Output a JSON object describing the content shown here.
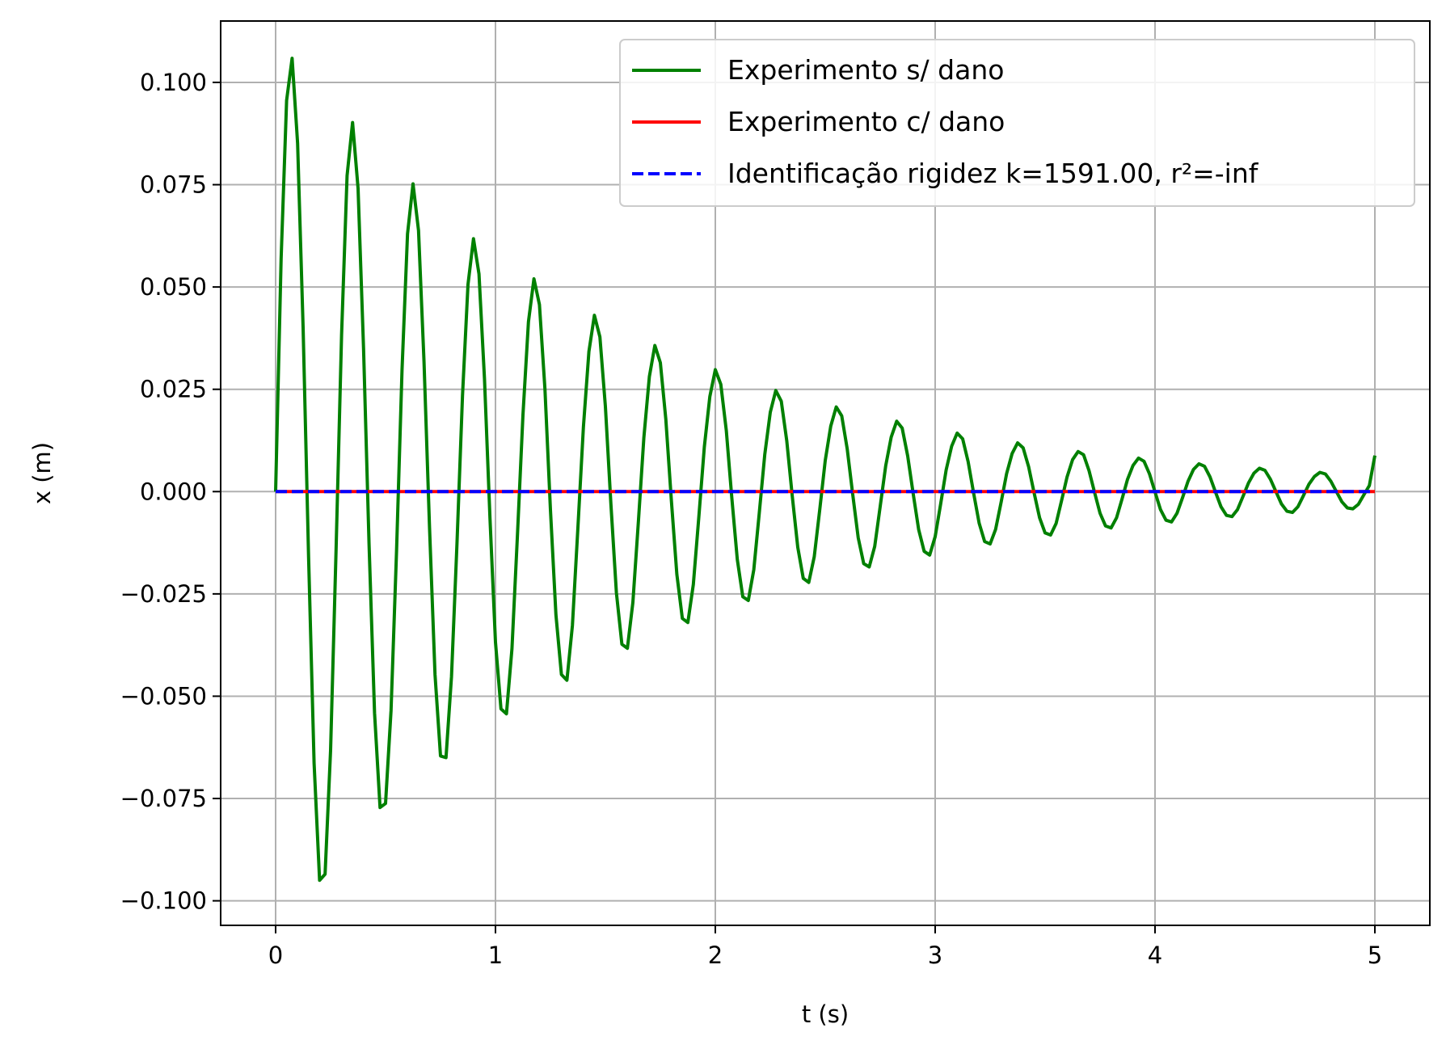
{
  "chart_data": {
    "type": "line",
    "title": "",
    "xlabel": "t (s)",
    "ylabel": "x (m)",
    "xlim": [
      -0.25,
      5.25
    ],
    "ylim": [
      -0.106,
      0.115
    ],
    "xticks": [
      0,
      1,
      2,
      3,
      4,
      5
    ],
    "xtick_labels": [
      "0",
      "1",
      "2",
      "3",
      "4",
      "5"
    ],
    "yticks": [
      -0.1,
      -0.075,
      -0.05,
      -0.025,
      0.0,
      0.025,
      0.05,
      0.075,
      0.1
    ],
    "ytick_labels": [
      "−0.100",
      "−0.075",
      "−0.050",
      "−0.025",
      "0.000",
      "0.025",
      "0.050",
      "0.075",
      "0.100"
    ],
    "grid": true,
    "legend_position": "top-right",
    "series": [
      {
        "name": "Experimento s/ dano",
        "color": "#008000",
        "style": "solid",
        "x": [
          0.0,
          0.025,
          0.05,
          0.075,
          0.1,
          0.125,
          0.15,
          0.175,
          0.2,
          0.225,
          0.25,
          0.275,
          0.3,
          0.325,
          0.35,
          0.375,
          0.4,
          0.425,
          0.45,
          0.475,
          0.5,
          0.525,
          0.55,
          0.575,
          0.6,
          0.625,
          0.65,
          0.675,
          0.7,
          0.725,
          0.75,
          0.775,
          0.8,
          0.825,
          0.85,
          0.875,
          0.9,
          0.925,
          0.95,
          0.975,
          1.0,
          1.025,
          1.05,
          1.075,
          1.1,
          1.125,
          1.15,
          1.175,
          1.2,
          1.225,
          1.25,
          1.275,
          1.3,
          1.325,
          1.35,
          1.375,
          1.4,
          1.425,
          1.45,
          1.475,
          1.5,
          1.525,
          1.55,
          1.575,
          1.6,
          1.625,
          1.65,
          1.675,
          1.7,
          1.725,
          1.75,
          1.775,
          1.8,
          1.825,
          1.85,
          1.875,
          1.9,
          1.925,
          1.95,
          1.975,
          2.0,
          2.025,
          2.05,
          2.075,
          2.1,
          2.125,
          2.15,
          2.175,
          2.2,
          2.225,
          2.25,
          2.275,
          2.3,
          2.325,
          2.35,
          2.375,
          2.4,
          2.425,
          2.45,
          2.475,
          2.5,
          2.525,
          2.55,
          2.575,
          2.6,
          2.625,
          2.65,
          2.675,
          2.7,
          2.725,
          2.75,
          2.775,
          2.8,
          2.825,
          2.85,
          2.875,
          2.9,
          2.925,
          2.95,
          2.975,
          3.0,
          3.025,
          3.05,
          3.075,
          3.1,
          3.125,
          3.15,
          3.175,
          3.2,
          3.225,
          3.25,
          3.275,
          3.3,
          3.325,
          3.35,
          3.375,
          3.4,
          3.425,
          3.45,
          3.475,
          3.5,
          3.525,
          3.55,
          3.575,
          3.6,
          3.625,
          3.65,
          3.675,
          3.7,
          3.725,
          3.75,
          3.775,
          3.8,
          3.825,
          3.85,
          3.875,
          3.9,
          3.925,
          3.95,
          3.975,
          4.0,
          4.025,
          4.05,
          4.075,
          4.1,
          4.125,
          4.15,
          4.175,
          4.2,
          4.225,
          4.25,
          4.275,
          4.3,
          4.325,
          4.35,
          4.375,
          4.4,
          4.425,
          4.45,
          4.475,
          4.5,
          4.525,
          4.55,
          4.575,
          4.6,
          4.625,
          4.65,
          4.675,
          4.7,
          4.725,
          4.75,
          4.775,
          4.8,
          4.825,
          4.85,
          4.875,
          4.9,
          4.925,
          4.95,
          4.975,
          5.0
        ],
        "y": [
          0.0,
          0.0569,
          0.0956,
          0.1059,
          0.0851,
          0.0401,
          -0.0161,
          -0.0664,
          -0.095,
          -0.0935,
          -0.0632,
          -0.0142,
          0.0383,
          0.0772,
          0.0902,
          0.0741,
          0.0349,
          -0.0129,
          -0.0541,
          -0.0772,
          -0.0762,
          -0.0535,
          -0.0146,
          0.0298,
          0.063,
          0.0752,
          0.0638,
          0.0317,
          -0.0087,
          -0.0447,
          -0.0646,
          -0.065,
          -0.0452,
          -0.0126,
          0.0234,
          0.0506,
          0.0618,
          0.0532,
          0.0276,
          -0.0065,
          -0.0368,
          -0.0531,
          -0.0543,
          -0.0384,
          -0.0106,
          0.0187,
          0.0415,
          0.052,
          0.0457,
          0.0251,
          -0.0044,
          -0.0301,
          -0.0447,
          -0.0461,
          -0.0327,
          -0.0088,
          0.0158,
          0.0342,
          0.0431,
          0.0378,
          0.0208,
          -0.003,
          -0.0247,
          -0.0373,
          -0.0383,
          -0.0271,
          -0.0074,
          0.0132,
          0.0281,
          0.0357,
          0.0315,
          0.0176,
          -0.0021,
          -0.0202,
          -0.031,
          -0.032,
          -0.0227,
          -0.0062,
          0.0109,
          0.0232,
          0.0298,
          0.0262,
          0.0149,
          -0.0015,
          -0.0166,
          -0.0257,
          -0.0266,
          -0.0191,
          -0.0052,
          0.0091,
          0.0194,
          0.0247,
          0.0221,
          0.0124,
          -0.0011,
          -0.0136,
          -0.0212,
          -0.0222,
          -0.0159,
          -0.0044,
          0.0076,
          0.016,
          0.0207,
          0.0185,
          0.0104,
          -0.0007,
          -0.0113,
          -0.0176,
          -0.0184,
          -0.0134,
          -0.0036,
          0.0063,
          0.0133,
          0.0172,
          0.0155,
          0.0087,
          -0.0005,
          -0.0093,
          -0.0146,
          -0.0155,
          -0.011,
          -0.003,
          0.0053,
          0.0111,
          0.0143,
          0.0129,
          0.0073,
          -0.0004,
          -0.0077,
          -0.0122,
          -0.0128,
          -0.0092,
          -0.0026,
          0.0044,
          0.0093,
          0.0119,
          0.0107,
          0.0061,
          -0.0003,
          -0.0064,
          -0.0101,
          -0.0106,
          -0.0078,
          -0.0022,
          0.0036,
          0.0078,
          0.0098,
          0.009,
          0.0051,
          -0.0002,
          -0.0053,
          -0.0084,
          -0.0089,
          -0.0064,
          -0.0018,
          0.003,
          0.0064,
          0.0082,
          0.0074,
          0.0043,
          -0.0001,
          -0.0044,
          -0.007,
          -0.0074,
          -0.0053,
          -0.0015,
          0.0025,
          0.0054,
          0.0068,
          0.0062,
          0.0036,
          -0.0001,
          -0.0037,
          -0.0058,
          -0.0061,
          -0.0044,
          -0.0012,
          0.0021,
          0.0045,
          0.0057,
          0.0052,
          0.003,
          0.0,
          -0.003,
          -0.0048,
          -0.0051,
          -0.0037,
          -0.001,
          0.0018,
          0.0037,
          0.0047,
          0.0043,
          0.0025,
          0.0,
          -0.0025,
          -0.004,
          -0.0042,
          -0.0031,
          -0.0008,
          0.0015,
          0.0088
        ]
      },
      {
        "name": "Experimento c/ dano",
        "color": "#ff0000",
        "style": "solid",
        "x": [
          0,
          5
        ],
        "y": [
          0.0,
          0.0
        ]
      },
      {
        "name": "Identificação rigidez k=1591.00, r²=-inf",
        "color": "#0000ff",
        "style": "dashed",
        "x": [
          0,
          5
        ],
        "y": [
          0.0,
          0.0
        ]
      }
    ]
  }
}
